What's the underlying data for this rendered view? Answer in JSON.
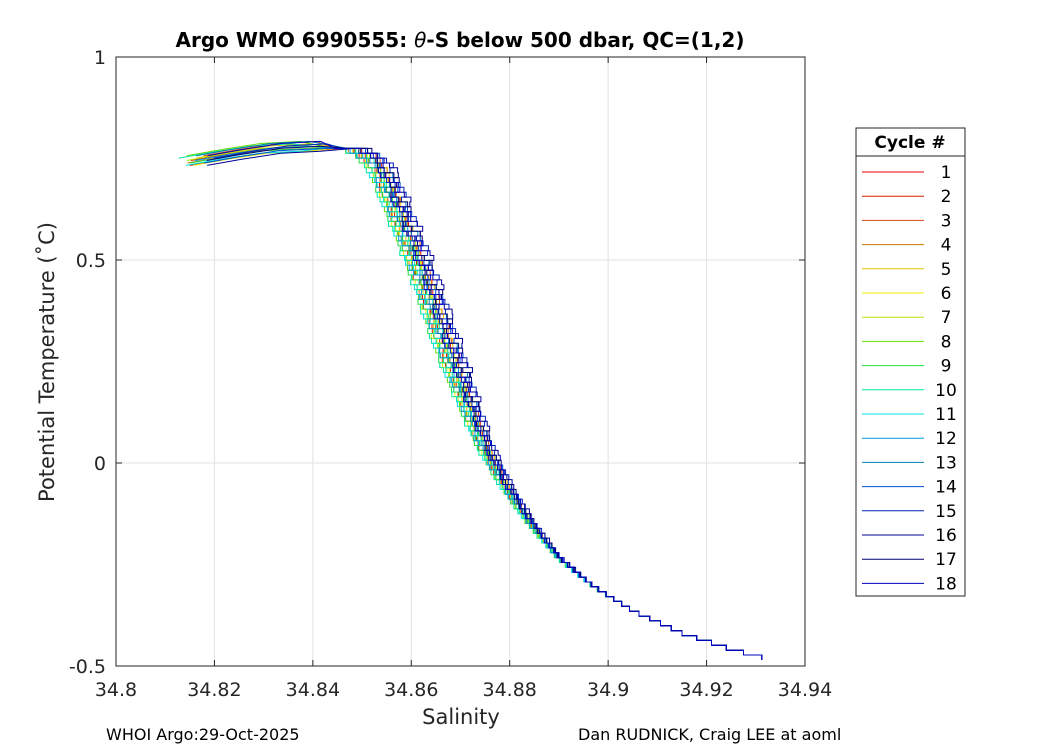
{
  "chart_data": {
    "type": "line",
    "title": "Argo WMO 6990555: θ-S below 500 dbar,  QC=(1,2)",
    "title_parts": {
      "prefix": "Argo WMO 6990555: ",
      "theta": "θ",
      "suffix": "-S below 500 dbar,  QC=(1,2)"
    },
    "xlabel": "Salinity",
    "ylabel": "Potential Temperature (˚C)",
    "xlim": [
      34.8,
      34.94
    ],
    "ylim": [
      -0.5,
      1.0
    ],
    "xticks": [
      34.8,
      34.82,
      34.84,
      34.86,
      34.88,
      34.9,
      34.92,
      34.94
    ],
    "xtick_labels": [
      "34.8",
      "34.82",
      "34.84",
      "34.86",
      "34.88",
      "34.9",
      "34.92",
      "34.94"
    ],
    "yticks": [
      -0.5,
      0,
      0.5,
      1
    ],
    "ytick_labels": [
      "-0.5",
      "0",
      "0.5",
      "1"
    ],
    "grid": true,
    "legend_title": "Cycle #",
    "legend_position": "right-outside",
    "series": [
      {
        "name": "1",
        "color": "#e60000",
        "dS": 0.0
      },
      {
        "name": "2",
        "color": "#dd1a00",
        "dS": -0.0005
      },
      {
        "name": "3",
        "color": "#d84a10",
        "dS": 0.0005
      },
      {
        "name": "4",
        "color": "#cc7a00",
        "dS": -0.0003
      },
      {
        "name": "5",
        "color": "#e6c000",
        "dS": 0.0002
      },
      {
        "name": "6",
        "color": "#f0f000",
        "dS": -0.0008
      },
      {
        "name": "7",
        "color": "#b8e600",
        "dS": -0.0004
      },
      {
        "name": "8",
        "color": "#66dd00",
        "dS": -0.001
      },
      {
        "name": "9",
        "color": "#22dd44",
        "dS": -0.0012
      },
      {
        "name": "10",
        "color": "#00e6a0",
        "dS": -0.0014
      },
      {
        "name": "11",
        "color": "#00e0e0",
        "dS": -0.0011
      },
      {
        "name": "12",
        "color": "#0099e6",
        "dS": -0.0006
      },
      {
        "name": "13",
        "color": "#0080b0",
        "dS": 0.0008
      },
      {
        "name": "14",
        "color": "#0050d0",
        "dS": 0.0012
      },
      {
        "name": "15",
        "color": "#0020b8",
        "dS": 0.0018
      },
      {
        "name": "16",
        "color": "#00009a",
        "dS": 0.0022
      },
      {
        "name": "17",
        "color": "#000070",
        "dS": 0.0015
      },
      {
        "name": "18",
        "color": "#0000c0",
        "dS": 0.001
      }
    ],
    "base_curve": {
      "S": [
        34.815,
        34.822,
        34.83,
        34.838,
        34.845,
        34.85,
        34.853,
        34.855,
        34.857,
        34.86,
        34.863,
        34.866,
        34.869,
        34.872,
        34.875,
        34.879,
        34.884,
        34.89,
        34.897,
        34.905,
        34.915,
        34.925,
        34.935
      ],
      "theta": [
        0.745,
        0.76,
        0.775,
        0.78,
        0.775,
        0.76,
        0.73,
        0.68,
        0.62,
        0.53,
        0.43,
        0.32,
        0.22,
        0.12,
        0.03,
        -0.06,
        -0.15,
        -0.24,
        -0.31,
        -0.37,
        -0.425,
        -0.465,
        -0.497
      ]
    }
  },
  "footer": {
    "left": "WHOI Argo:29-Oct-2025",
    "right": "Dan RUDNICK, Craig LEE at aoml"
  }
}
